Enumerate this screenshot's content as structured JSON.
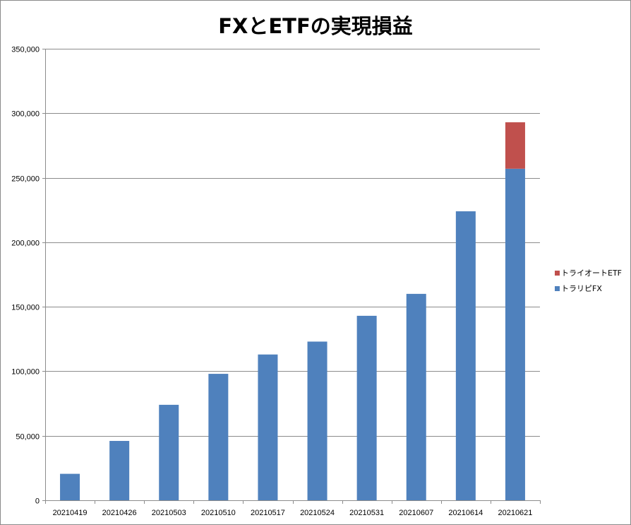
{
  "chart_data": {
    "type": "bar",
    "stacked": true,
    "title": "FXとETFの実現損益",
    "xlabel": "",
    "ylabel": "",
    "ylim": [
      0,
      350000
    ],
    "yticks": [
      0,
      50000,
      100000,
      150000,
      200000,
      250000,
      300000,
      350000
    ],
    "ytick_labels": [
      "0",
      "50,000",
      "100,000",
      "150,000",
      "200,000",
      "250,000",
      "300,000",
      "350,000"
    ],
    "grid": "horizontal",
    "legend_position": "right",
    "categories": [
      "20210419",
      "20210426",
      "20210503",
      "20210510",
      "20210517",
      "20210524",
      "20210531",
      "20210607",
      "20210614",
      "20210621"
    ],
    "series": [
      {
        "name": "トラリピFX",
        "color": "#4f81bd",
        "values": [
          20500,
          46000,
          74000,
          98000,
          113000,
          123000,
          143000,
          160000,
          224000,
          257000
        ]
      },
      {
        "name": "トライオートETF",
        "color": "#c0504d",
        "values": [
          0,
          0,
          0,
          0,
          0,
          0,
          0,
          0,
          0,
          36000
        ]
      }
    ]
  }
}
